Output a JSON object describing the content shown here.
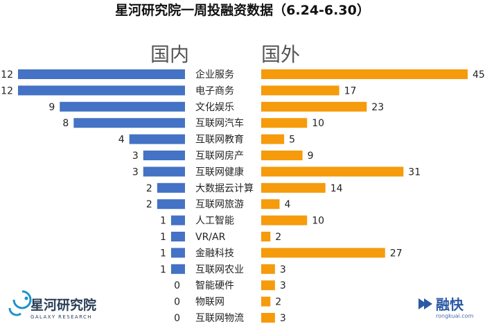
{
  "title": "星河研究院一周投融资数据（6.24-6.30）",
  "panels": {
    "left": "国内",
    "right": "国外"
  },
  "colors": {
    "domestic": "#4472c4",
    "foreign": "#f59b0c"
  },
  "chart_data": {
    "type": "bar",
    "orientation": "horizontal-butterfly",
    "title": "星河研究院一周投融资数据（6.24-6.30）",
    "categories": [
      "企业服务",
      "电子商务",
      "文化娱乐",
      "互联网汽车",
      "互联网教育",
      "互联网房产",
      "互联网健康",
      "大数据云计算",
      "互联网旅游",
      "人工智能",
      "VR/AR",
      "金融科技",
      "互联网农业",
      "智能硬件",
      "物联网",
      "互联网物流"
    ],
    "series": [
      {
        "name": "国内",
        "values": [
          12,
          12,
          9,
          8,
          4,
          3,
          3,
          2,
          2,
          1,
          1,
          1,
          1,
          0,
          0,
          0
        ]
      },
      {
        "name": "国外",
        "values": [
          45,
          17,
          23,
          10,
          5,
          9,
          31,
          14,
          4,
          10,
          2,
          27,
          3,
          3,
          2,
          3
        ]
      }
    ]
  },
  "logos": {
    "galaxy": {
      "name": "星河研究院",
      "subtitle": "GALAXY RESEARCH"
    },
    "rongkuai": {
      "name": "融快",
      "url": "rongkuai.com"
    }
  }
}
